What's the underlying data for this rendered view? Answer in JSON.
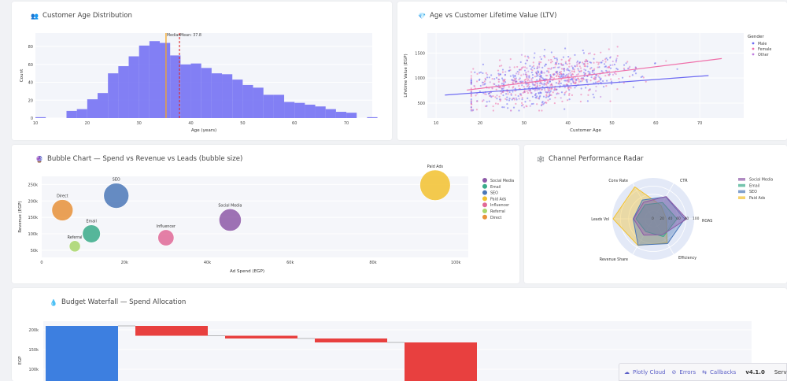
{
  "cards": {
    "age_dist": {
      "icon": "👥",
      "title": "Customer Age Distribution"
    },
    "ltv": {
      "icon": "💎",
      "title": "Age vs Customer Lifetime Value (LTV)"
    },
    "bubble": {
      "icon": "🔮",
      "title": "Bubble Chart — Spend vs Revenue vs Leads (bubble size)"
    },
    "radar": {
      "icon": "🕸️",
      "title": "Channel Performance Radar"
    },
    "waterfall": {
      "icon": "💧",
      "title": "Budget Waterfall — Spend Allocation"
    }
  },
  "chart_data": [
    {
      "id": "age_hist",
      "type": "bar",
      "xlabel": "Age (years)",
      "ylabel": "Count",
      "xlim": [
        10,
        75
      ],
      "ylim": [
        0,
        95
      ],
      "xticks": [
        10,
        20,
        30,
        40,
        50,
        60,
        70
      ],
      "yticks": [
        0,
        20,
        40,
        60,
        80
      ],
      "bin_width": 2,
      "bins_start": [
        10,
        16,
        18,
        20,
        22,
        24,
        26,
        28,
        30,
        32,
        34,
        36,
        38,
        40,
        42,
        44,
        46,
        48,
        50,
        52,
        54,
        56,
        58,
        60,
        62,
        64,
        66,
        68,
        70,
        72,
        74
      ],
      "counts": [
        1,
        8,
        10,
        21,
        28,
        50,
        58,
        69,
        81,
        86,
        84,
        70,
        60,
        61,
        56,
        50,
        49,
        43,
        37,
        34,
        26,
        26,
        18,
        17,
        15,
        13,
        10,
        7,
        6,
        0,
        1
      ],
      "color": "#6d6af2",
      "annotations": [
        {
          "label": "Median",
          "x": 35.2,
          "color": "#f5a623",
          "style": "solid"
        },
        {
          "label": "Mean: 37.8",
          "x": 37.8,
          "color": "#e02424",
          "style": "dash"
        }
      ]
    },
    {
      "id": "age_ltv",
      "type": "scatter",
      "xlabel": "Customer Age",
      "ylabel": "Lifetime Value (EGP)",
      "xlim": [
        8,
        80
      ],
      "ylim": [
        200,
        1900
      ],
      "xticks": [
        10,
        20,
        30,
        40,
        50,
        60,
        70
      ],
      "yticks": [
        500,
        1000,
        1500
      ],
      "legend_title": "Gender",
      "series": [
        {
          "name": "Male",
          "color": "#6d6af2",
          "trend": [
            [
              12,
              660
            ],
            [
              72,
              1050
            ]
          ]
        },
        {
          "name": "Female",
          "color": "#ef6fa9",
          "trend": [
            [
              17,
              760
            ],
            [
              75,
              1390
            ]
          ]
        },
        {
          "name": "Other",
          "color": "#c17de0",
          "trend": null
        }
      ],
      "point_count": 900,
      "relationship": "ltv = 530 + 12*age + noise(sd 230)"
    },
    {
      "id": "spend_revenue",
      "type": "scatter",
      "xlabel": "Ad Spend (EGP)",
      "ylabel": "Revenue (EGP)",
      "xlim": [
        0,
        103000
      ],
      "ylim": [
        28000,
        275000
      ],
      "xticks": [
        {
          "v": 0,
          "label": "0"
        },
        {
          "v": 20000,
          "label": "20k"
        },
        {
          "v": 40000,
          "label": "40k"
        },
        {
          "v": 60000,
          "label": "60k"
        },
        {
          "v": 80000,
          "label": "80k"
        },
        {
          "v": 100000,
          "label": "100k"
        }
      ],
      "yticks": [
        {
          "v": 50000,
          "label": "50k"
        },
        {
          "v": 100000,
          "label": "100k"
        },
        {
          "v": 150000,
          "label": "150k"
        },
        {
          "v": 200000,
          "label": "200k"
        },
        {
          "v": 250000,
          "label": "250k"
        }
      ],
      "points": [
        {
          "name": "Social Media",
          "spend": 45500,
          "revenue": 142000,
          "leads": 70,
          "color": "#8e5aa8"
        },
        {
          "name": "Email",
          "spend": 12000,
          "revenue": 100000,
          "leads": 40,
          "color": "#3aab8a"
        },
        {
          "name": "SEO",
          "spend": 18000,
          "revenue": 216000,
          "leads": 95,
          "color": "#4c78b8"
        },
        {
          "name": "Paid Ads",
          "spend": 95000,
          "revenue": 248000,
          "leads": 150,
          "color": "#f2c12e"
        },
        {
          "name": "Influencer",
          "spend": 30000,
          "revenue": 88000,
          "leads": 30,
          "color": "#e16a98"
        },
        {
          "name": "Referral",
          "spend": 8000,
          "revenue": 62000,
          "leads": 10,
          "color": "#a8d66b"
        },
        {
          "name": "Direct",
          "spend": 5000,
          "revenue": 172000,
          "leads": 62,
          "color": "#e8923a"
        }
      ]
    },
    {
      "id": "channel_radar",
      "type": "radar",
      "axes": [
        "CTR",
        "ROAS",
        "Efficiency",
        "Revenue Share",
        "Leads Vol",
        "Conv Rate"
      ],
      "radial_ticks": [
        0,
        20,
        40,
        60,
        80,
        100
      ],
      "series": [
        {
          "name": "Social Media",
          "color": "#8e5aa8",
          "values": [
            63,
            82,
            45,
            46,
            48,
            47
          ]
        },
        {
          "name": "Email",
          "color": "#3aab8a",
          "values": [
            46,
            58,
            50,
            36,
            42,
            40
          ]
        },
        {
          "name": "SEO",
          "color": "#4c78b8",
          "values": [
            62,
            77,
            70,
            74,
            49,
            53
          ]
        },
        {
          "name": "Paid Ads",
          "color": "#f2c12e",
          "values": [
            38,
            32,
            68,
            75,
            98,
            90
          ]
        }
      ]
    },
    {
      "id": "budget_waterfall",
      "type": "bar",
      "subtype": "waterfall",
      "ylabel": "EGP",
      "ylim": [
        70000,
        222000
      ],
      "yticks": [
        {
          "v": 100000,
          "label": "100k"
        },
        {
          "v": 150000,
          "label": "150k"
        },
        {
          "v": 200000,
          "label": "200k"
        }
      ],
      "steps": [
        {
          "kind": "total",
          "value": 210000,
          "color": "#3d7fe0"
        },
        {
          "kind": "decrease",
          "value": -25000,
          "color": "#e8403f"
        },
        {
          "kind": "decrease",
          "value": -7000,
          "color": "#e8403f"
        },
        {
          "kind": "decrease",
          "value": -10000,
          "color": "#e8403f"
        },
        {
          "kind": "decrease",
          "value": -140000,
          "color": "#e8403f"
        }
      ]
    }
  ],
  "devtools": {
    "cloud": "Plotly Cloud",
    "errors": "Errors",
    "callbacks": "Callbacks",
    "version": "v4.1.0",
    "server": "Server"
  }
}
